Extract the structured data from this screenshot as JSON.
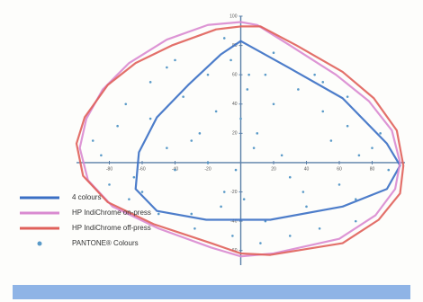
{
  "chart_data": {
    "type": "gamut",
    "xlim": [
      -100,
      100
    ],
    "ylim": [
      -70,
      100
    ],
    "xticks": [
      -80,
      -60,
      -40,
      -20,
      20,
      40,
      60,
      80
    ],
    "yticks": [
      -60,
      -40,
      -20,
      20,
      40,
      60,
      80,
      100
    ],
    "legend": "lower left",
    "series": [
      {
        "name": "4 colours",
        "color": "#3a6fc4",
        "type": "area",
        "x": [
          0,
          29,
          62,
          89,
          97,
          89,
          62,
          18,
          -21,
          -51,
          -64,
          -62,
          -51,
          -32,
          -12
        ],
        "values": [
          83,
          65,
          44,
          13,
          -2,
          -18,
          -30,
          -39,
          -39,
          -33,
          -18,
          7,
          31,
          53,
          74
        ]
      },
      {
        "name": "HP IndiChrome on-press",
        "color": "#d98ad0",
        "type": "area",
        "x": [
          0,
          -20,
          -45,
          -68,
          -84,
          -94,
          -98,
          -93,
          -78,
          -50,
          -18,
          0,
          20,
          60,
          82,
          94,
          97,
          92,
          78,
          58,
          30,
          10
        ],
        "values": [
          96,
          94,
          84,
          68,
          50,
          30,
          10,
          -12,
          -30,
          -45,
          -58,
          -64,
          -62,
          -52,
          -36,
          -18,
          0,
          22,
          42,
          60,
          80,
          94
        ]
      },
      {
        "name": "HP IndiChrome off-press",
        "color": "#e0605a",
        "type": "area",
        "x": [
          0,
          -15,
          -42,
          -64,
          -81,
          -95,
          -100,
          -96,
          -81,
          -53,
          -18,
          0,
          18,
          62,
          84,
          97,
          99,
          95,
          81,
          62,
          34,
          12
        ],
        "values": [
          93,
          91,
          80,
          68,
          53,
          31,
          13,
          -9,
          -27,
          -42,
          -55,
          -62,
          -63,
          -55,
          -39,
          -21,
          -2,
          22,
          44,
          62,
          80,
          93
        ]
      },
      {
        "name": "PANTONE® Colours",
        "color": "#5a9ac8",
        "type": "scatter",
        "x": [
          -70,
          -55,
          -40,
          -25,
          -10,
          5,
          20,
          35,
          50,
          65,
          80,
          -85,
          -60,
          -30,
          -5,
          15,
          40,
          70,
          90,
          -75,
          -45,
          -15,
          10,
          30,
          55,
          70,
          -65,
          -35,
          -20,
          0,
          25,
          45,
          60,
          -50,
          -10,
          8,
          -3,
          4,
          -6,
          12,
          -80,
          -40,
          30,
          85,
          -20,
          50,
          -55,
          20,
          -30,
          65,
          -90,
          38,
          -12,
          72,
          2,
          -45,
          15,
          -68,
          48,
          -28
        ],
        "values": [
          40,
          55,
          70,
          20,
          85,
          60,
          75,
          50,
          35,
          45,
          10,
          5,
          -20,
          -35,
          -50,
          -40,
          -30,
          -25,
          -5,
          25,
          10,
          35,
          20,
          -10,
          15,
          -40,
          -10,
          45,
          60,
          30,
          5,
          60,
          -15,
          -35,
          -20,
          10,
          -5,
          50,
          70,
          -55,
          -15,
          -5,
          -50,
          20,
          0,
          55,
          30,
          40,
          15,
          25,
          15,
          -20,
          -30,
          5,
          -25,
          65,
          60,
          -25,
          -45,
          -45
        ]
      }
    ]
  }
}
